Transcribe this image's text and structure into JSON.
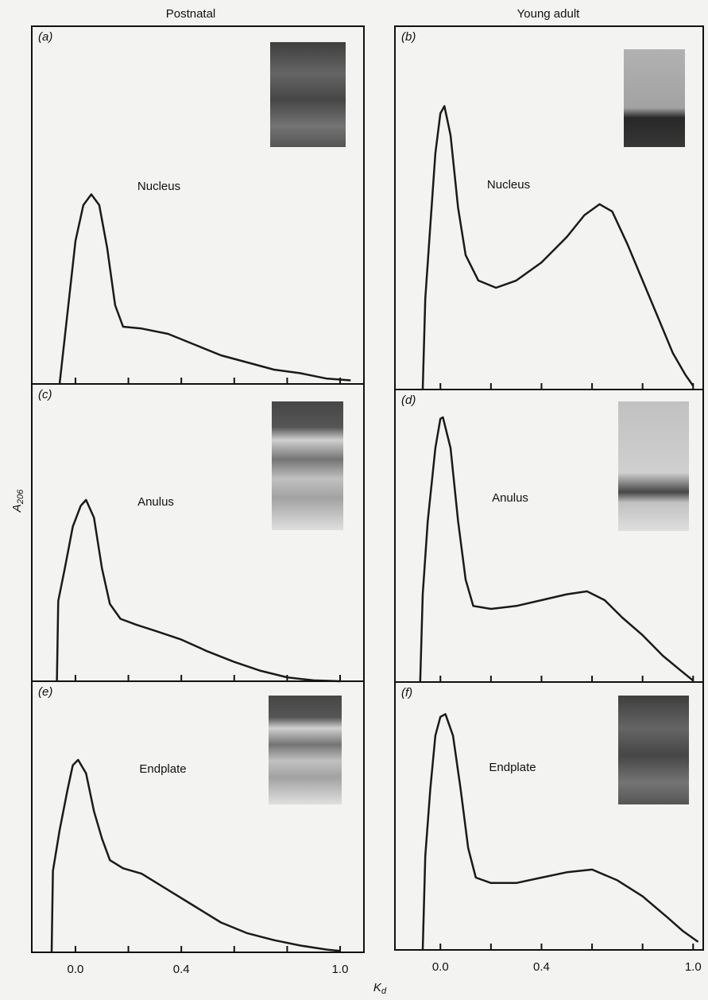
{
  "figure": {
    "ylabel": "A",
    "ylabel_sub": "206",
    "xlabel": "K",
    "xlabel_sub": "d"
  },
  "chart_data": [
    {
      "type": "line",
      "title": "Postnatal",
      "panel_label": "(a)",
      "annotation": "Nucleus",
      "color": "#1a1a1a",
      "x": [
        -0.06,
        -0.03,
        0,
        0.03,
        0.06,
        0.09,
        0.12,
        0.15,
        0.18,
        0.25,
        0.35,
        0.45,
        0.55,
        0.65,
        0.75,
        0.85,
        0.95,
        1.04
      ],
      "values": [
        0,
        0.2,
        0.4,
        0.5,
        0.53,
        0.5,
        0.38,
        0.22,
        0.16,
        0.155,
        0.14,
        0.11,
        0.08,
        0.06,
        0.04,
        0.03,
        0.015,
        0.01
      ],
      "xlim": [
        -0.165,
        1.09
      ],
      "ylim": [
        0,
        1
      ],
      "xticks": [
        {
          "value": 0,
          "label": null
        },
        {
          "value": 0.2,
          "label": null
        },
        {
          "value": 0.4,
          "label": null
        },
        {
          "value": 0.6,
          "label": null
        },
        {
          "value": 0.8,
          "label": null
        },
        {
          "value": 1,
          "label": null
        }
      ]
    },
    {
      "type": "line",
      "title": "Young adult",
      "panel_label": "(b)",
      "annotation": "Nucleus",
      "color": "#1a1a1a",
      "x": [
        -0.07,
        -0.06,
        -0.04,
        -0.02,
        0,
        0.016,
        0.04,
        0.07,
        0.1,
        0.15,
        0.22,
        0.3,
        0.4,
        0.5,
        0.57,
        0.63,
        0.68,
        0.74,
        0.8,
        0.86,
        0.92,
        0.97,
        1.0
      ],
      "values": [
        0,
        0.25,
        0.45,
        0.65,
        0.76,
        0.78,
        0.7,
        0.5,
        0.37,
        0.3,
        0.28,
        0.3,
        0.35,
        0.42,
        0.48,
        0.51,
        0.49,
        0.4,
        0.3,
        0.2,
        0.1,
        0.04,
        0.01
      ],
      "xlim": [
        -0.18,
        1.04
      ],
      "ylim": [
        0,
        1
      ],
      "xticks": [
        {
          "value": 0,
          "label": null
        },
        {
          "value": 0.2,
          "label": null
        },
        {
          "value": 0.4,
          "label": null
        },
        {
          "value": 0.6,
          "label": null
        },
        {
          "value": 0.8,
          "label": null
        },
        {
          "value": 1,
          "label": null
        }
      ]
    },
    {
      "type": "line",
      "panel_label": "(c)",
      "annotation": "Anulus",
      "color": "#1a1a1a",
      "x": [
        -0.07,
        -0.065,
        -0.04,
        -0.01,
        0.02,
        0.04,
        0.07,
        0.1,
        0.13,
        0.17,
        0.23,
        0.3,
        0.4,
        0.5,
        0.6,
        0.7,
        0.8,
        0.9,
        1.0
      ],
      "values": [
        0,
        0.27,
        0.38,
        0.52,
        0.59,
        0.61,
        0.55,
        0.38,
        0.26,
        0.21,
        0.19,
        0.17,
        0.14,
        0.1,
        0.065,
        0.035,
        0.013,
        0.003,
        0
      ],
      "xlim": [
        -0.165,
        1.09
      ],
      "ylim": [
        0,
        1
      ],
      "xticks": [
        {
          "value": 0,
          "label": null
        },
        {
          "value": 0.2,
          "label": null
        },
        {
          "value": 0.4,
          "label": null
        },
        {
          "value": 0.6,
          "label": null
        },
        {
          "value": 0.8,
          "label": null
        },
        {
          "value": 1,
          "label": null
        }
      ]
    },
    {
      "type": "line",
      "panel_label": "(d)",
      "annotation": "Anulus",
      "color": "#1a1a1a",
      "x": [
        -0.08,
        -0.07,
        -0.05,
        -0.02,
        0,
        0.01,
        0.04,
        0.07,
        0.1,
        0.13,
        0.2,
        0.3,
        0.4,
        0.5,
        0.58,
        0.65,
        0.72,
        0.8,
        0.88,
        0.95,
        1.0
      ],
      "values": [
        0,
        0.3,
        0.55,
        0.8,
        0.9,
        0.905,
        0.8,
        0.55,
        0.35,
        0.26,
        0.25,
        0.26,
        0.28,
        0.3,
        0.31,
        0.28,
        0.22,
        0.16,
        0.09,
        0.04,
        0.005
      ],
      "xlim": [
        -0.18,
        1.04
      ],
      "ylim": [
        0,
        1
      ],
      "xticks": [
        {
          "value": 0,
          "label": null
        },
        {
          "value": 0.2,
          "label": null
        },
        {
          "value": 0.4,
          "label": null
        },
        {
          "value": 0.6,
          "label": null
        },
        {
          "value": 0.8,
          "label": null
        },
        {
          "value": 1,
          "label": null
        }
      ]
    },
    {
      "type": "line",
      "panel_label": "(e)",
      "annotation": "Endplate",
      "color": "#1a1a1a",
      "x": [
        -0.09,
        -0.085,
        -0.06,
        -0.03,
        -0.01,
        0.01,
        0.04,
        0.07,
        0.1,
        0.13,
        0.18,
        0.25,
        0.35,
        0.45,
        0.55,
        0.65,
        0.75,
        0.85,
        0.95,
        1.0
      ],
      "values": [
        0,
        0.3,
        0.45,
        0.6,
        0.69,
        0.71,
        0.66,
        0.52,
        0.42,
        0.34,
        0.31,
        0.29,
        0.23,
        0.17,
        0.11,
        0.07,
        0.045,
        0.025,
        0.01,
        0.005
      ],
      "xlim": [
        -0.165,
        1.09
      ],
      "ylim": [
        0,
        1
      ],
      "xticks": [
        {
          "value": 0,
          "label": "0.0"
        },
        {
          "value": 0.2,
          "label": null
        },
        {
          "value": 0.4,
          "label": "0.4"
        },
        {
          "value": 0.6,
          "label": null
        },
        {
          "value": 0.8,
          "label": null
        },
        {
          "value": 1,
          "label": "1.0"
        }
      ]
    },
    {
      "type": "line",
      "panel_label": "(f)",
      "annotation": "Endplate",
      "color": "#1a1a1a",
      "x": [
        -0.07,
        -0.06,
        -0.04,
        -0.02,
        0,
        0.02,
        0.05,
        0.08,
        0.11,
        0.14,
        0.2,
        0.3,
        0.4,
        0.5,
        0.6,
        0.7,
        0.8,
        0.9,
        0.96,
        1.02
      ],
      "values": [
        0,
        0.35,
        0.6,
        0.8,
        0.87,
        0.88,
        0.8,
        0.6,
        0.38,
        0.27,
        0.25,
        0.25,
        0.27,
        0.29,
        0.3,
        0.26,
        0.2,
        0.12,
        0.07,
        0.03
      ],
      "xlim": [
        -0.18,
        1.04
      ],
      "ylim": [
        0,
        1
      ],
      "xticks": [
        {
          "value": 0,
          "label": "0.0"
        },
        {
          "value": 0.2,
          "label": null
        },
        {
          "value": 0.4,
          "label": "0.4"
        },
        {
          "value": 0.6,
          "label": null
        },
        {
          "value": 0.8,
          "label": null
        },
        {
          "value": 1,
          "label": "1.0"
        }
      ]
    }
  ]
}
